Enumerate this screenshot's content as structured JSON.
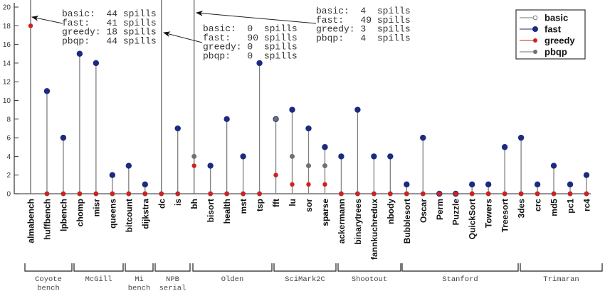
{
  "chart_data": {
    "type": "scatter",
    "subtype": "stem",
    "title": "",
    "xlabel": "",
    "ylabel": "",
    "ylim": [
      0,
      20
    ],
    "yticks": [
      0,
      2,
      4,
      6,
      8,
      10,
      12,
      14,
      16,
      18,
      20
    ],
    "grid": false,
    "legend_position": "top-right",
    "categories": [
      "almabench",
      "huffbench",
      "lpbench",
      "chomp",
      "misr",
      "queens",
      "bitcount",
      "dijkstra",
      "dc",
      "is",
      "bh",
      "bisort",
      "health",
      "mst",
      "tsp",
      "fft",
      "lu",
      "sor",
      "sparse",
      "ackermann",
      "binarytrees",
      "fannkuchredux",
      "nbody",
      "Bubblesort",
      "Oscar",
      "Perm",
      "Puzzle",
      "QuickSort",
      "Towers",
      "Treesort",
      "3des",
      "crc",
      "md5",
      "pc1",
      "rc4"
    ],
    "series": [
      {
        "name": "basic",
        "color": "#777777",
        "marker": "open-circle",
        "values": [
          44,
          0,
          0,
          0,
          0,
          0,
          0,
          0,
          0,
          0,
          4,
          0,
          0,
          0,
          0,
          8,
          4,
          3,
          3,
          0,
          0,
          0,
          0,
          0,
          0,
          0,
          0,
          0,
          0,
          0,
          0,
          0,
          0,
          0,
          0
        ]
      },
      {
        "name": "fast",
        "color": "#1c2a80",
        "marker": "filled-circle",
        "values": [
          41,
          11,
          6,
          15,
          14,
          2,
          3,
          1,
          90,
          7,
          49,
          3,
          8,
          4,
          14,
          8,
          9,
          7,
          5,
          4,
          9,
          4,
          4,
          1,
          6,
          0,
          0,
          1,
          1,
          5,
          6,
          1,
          3,
          1,
          2
        ]
      },
      {
        "name": "greedy",
        "color": "#d02020",
        "marker": "filled-circle",
        "values": [
          18,
          0,
          0,
          0,
          0,
          0,
          0,
          0,
          0,
          0,
          3,
          0,
          0,
          0,
          0,
          2,
          1,
          1,
          1,
          0,
          0,
          0,
          0,
          0,
          0,
          0,
          0,
          0,
          0,
          0,
          0,
          0,
          0,
          0,
          0
        ]
      },
      {
        "name": "pbqp",
        "color": "#707070",
        "marker": "filled-circle",
        "values": [
          44,
          0,
          0,
          0,
          0,
          0,
          0,
          0,
          0,
          0,
          4,
          0,
          0,
          0,
          0,
          8,
          4,
          3,
          3,
          0,
          0,
          0,
          0,
          0,
          0,
          0,
          0,
          0,
          0,
          0,
          0,
          0,
          0,
          0,
          0
        ]
      }
    ],
    "groups": [
      {
        "label": [
          "Coyote",
          "bench"
        ],
        "start": 0,
        "end": 2
      },
      {
        "label": [
          "McGill"
        ],
        "start": 3,
        "end": 5
      },
      {
        "label": [
          "Mi",
          "bench"
        ],
        "start": 6,
        "end": 7
      },
      {
        "label": [
          "NPB",
          "serial"
        ],
        "start": 8,
        "end": 9
      },
      {
        "label": [
          "Olden"
        ],
        "start": 10,
        "end": 14
      },
      {
        "label": [
          "SciMark2C"
        ],
        "start": 15,
        "end": 18
      },
      {
        "label": [
          "Shootout"
        ],
        "start": 19,
        "end": 22
      },
      {
        "label": [
          "Stanford"
        ],
        "start": 23,
        "end": 29
      },
      {
        "label": [
          "Trimaran"
        ],
        "start": 30,
        "end": 34
      }
    ],
    "annotations": [
      {
        "target": "almabench",
        "lines": [
          "basic:  44 spills",
          "fast:   41 spills",
          "greedy: 18 spills",
          "pbqp:   44 spills"
        ]
      },
      {
        "target": "dc",
        "lines": [
          "basic:  0  spills",
          "fast:   90 spills",
          "greedy: 0  spills",
          "pbqp:   0  spills"
        ]
      },
      {
        "target": "bh",
        "lines": [
          "basic:  4  spills",
          "fast:   49 spills",
          "greedy: 3  spills",
          "pbqp:   4  spills"
        ]
      }
    ],
    "legend": [
      "basic",
      "fast",
      "greedy",
      "pbqp"
    ]
  }
}
